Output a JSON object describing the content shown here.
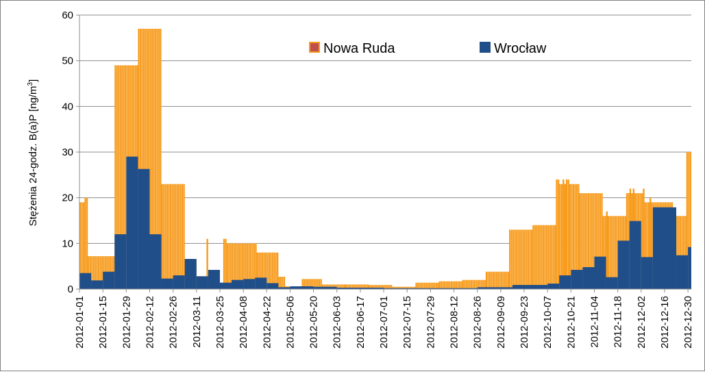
{
  "chart_data": {
    "type": "bar",
    "title": "",
    "xlabel": "",
    "ylabel_parts": [
      "Stężenia 24-godz. B(a)P [ng/m",
      "3",
      "]"
    ],
    "ylim": [
      0,
      60
    ],
    "yticks": [
      "0",
      "10",
      "20",
      "30",
      "40",
      "50",
      "60"
    ],
    "grid": "horizontal",
    "legend_placement": "top-center",
    "xticks": [
      "2012-01-01",
      "2012-01-15",
      "2012-01-29",
      "2012-02-12",
      "2012-02-26",
      "2012-03-11",
      "2012-03-25",
      "2012-04-08",
      "2012-04-22",
      "2012-05-06",
      "2012-05-20",
      "2012-06-03",
      "2012-06-17",
      "2012-07-01",
      "2012-07-15",
      "2012-07-29",
      "2012-08-12",
      "2012-08-26",
      "2012-09-09",
      "2012-09-23",
      "2012-10-07",
      "2012-10-21",
      "2012-11-04",
      "2012-11-18",
      "2012-12-02",
      "2012-12-16",
      "2012-12-30"
    ],
    "series": [
      {
        "name": "Nowa Ruda",
        "color": "#f79b1c",
        "values": [
          {
            "from": "2012-01-01",
            "to": "2012-01-03",
            "v": 19
          },
          {
            "from": "2012-01-04",
            "to": "2012-01-05",
            "v": 20
          },
          {
            "from": "2012-01-06",
            "to": "2012-01-21",
            "v": 7.2
          },
          {
            "from": "2012-01-22",
            "to": "2012-02-04",
            "v": 49
          },
          {
            "from": "2012-02-05",
            "to": "2012-02-18",
            "v": 57
          },
          {
            "from": "2012-02-19",
            "to": "2012-03-03",
            "v": 23
          },
          {
            "from": "2012-03-04",
            "to": "2012-03-10",
            "v": 6.5
          },
          {
            "from": "2012-03-11",
            "to": "2012-03-16",
            "v": 2.8
          },
          {
            "from": "2012-03-17",
            "to": "2012-03-17",
            "v": 11
          },
          {
            "from": "2012-03-18",
            "to": "2012-03-24",
            "v": 4.2
          },
          {
            "from": "2012-03-25",
            "to": "2012-03-26",
            "v": 1.3
          },
          {
            "from": "2012-03-27",
            "to": "2012-03-28",
            "v": 11
          },
          {
            "from": "2012-03-29",
            "to": "2012-04-15",
            "v": 10
          },
          {
            "from": "2012-04-16",
            "to": "2012-04-28",
            "v": 8
          },
          {
            "from": "2012-04-29",
            "to": "2012-05-02",
            "v": 2.7
          },
          {
            "from": "2012-05-03",
            "to": "2012-05-12",
            "v": 0.6
          },
          {
            "from": "2012-05-13",
            "to": "2012-05-24",
            "v": 2.2
          },
          {
            "from": "2012-05-25",
            "to": "2012-06-07",
            "v": 1
          },
          {
            "from": "2012-06-08",
            "to": "2012-06-21",
            "v": 1
          },
          {
            "from": "2012-06-22",
            "to": "2012-07-05",
            "v": 0.9
          },
          {
            "from": "2012-07-06",
            "to": "2012-07-19",
            "v": 0.5
          },
          {
            "from": "2012-07-20",
            "to": "2012-08-02",
            "v": 1.4
          },
          {
            "from": "2012-08-03",
            "to": "2012-08-16",
            "v": 1.7
          },
          {
            "from": "2012-08-17",
            "to": "2012-08-30",
            "v": 2
          },
          {
            "from": "2012-08-31",
            "to": "2012-09-13",
            "v": 3.8
          },
          {
            "from": "2012-09-14",
            "to": "2012-09-27",
            "v": 13
          },
          {
            "from": "2012-09-28",
            "to": "2012-10-11",
            "v": 14
          },
          {
            "from": "2012-10-12",
            "to": "2012-10-13",
            "v": 24
          },
          {
            "from": "2012-10-14",
            "to": "2012-10-15",
            "v": 23
          },
          {
            "from": "2012-10-16",
            "to": "2012-10-16",
            "v": 24
          },
          {
            "from": "2012-10-17",
            "to": "2012-10-17",
            "v": 23
          },
          {
            "from": "2012-10-18",
            "to": "2012-10-19",
            "v": 24
          },
          {
            "from": "2012-10-20",
            "to": "2012-10-25",
            "v": 23
          },
          {
            "from": "2012-10-26",
            "to": "2012-11-08",
            "v": 21
          },
          {
            "from": "2012-11-09",
            "to": "2012-11-10",
            "v": 16
          },
          {
            "from": "2012-11-11",
            "to": "2012-11-11",
            "v": 17
          },
          {
            "from": "2012-11-12",
            "to": "2012-11-22",
            "v": 16
          },
          {
            "from": "2012-11-23",
            "to": "2012-11-24",
            "v": 21
          },
          {
            "from": "2012-11-25",
            "to": "2012-11-25",
            "v": 22
          },
          {
            "from": "2012-11-26",
            "to": "2012-11-26",
            "v": 21
          },
          {
            "from": "2012-11-27",
            "to": "2012-11-27",
            "v": 22
          },
          {
            "from": "2012-11-28",
            "to": "2012-12-02",
            "v": 21
          },
          {
            "from": "2012-12-03",
            "to": "2012-12-03",
            "v": 22
          },
          {
            "from": "2012-12-04",
            "to": "2012-12-06",
            "v": 19
          },
          {
            "from": "2012-12-07",
            "to": "2012-12-07",
            "v": 20
          },
          {
            "from": "2012-12-08",
            "to": "2012-12-20",
            "v": 19
          },
          {
            "from": "2012-12-21",
            "to": "2012-12-28",
            "v": 16
          },
          {
            "from": "2012-12-29",
            "to": "2012-12-31",
            "v": 30
          }
        ]
      },
      {
        "name": "Wrocław",
        "color": "#1f4e89",
        "values": [
          {
            "from": "2012-01-01",
            "to": "2012-01-07",
            "v": 3.5
          },
          {
            "from": "2012-01-08",
            "to": "2012-01-14",
            "v": 1.9
          },
          {
            "from": "2012-01-15",
            "to": "2012-01-21",
            "v": 3.8
          },
          {
            "from": "2012-01-22",
            "to": "2012-01-28",
            "v": 12
          },
          {
            "from": "2012-01-29",
            "to": "2012-02-04",
            "v": 29
          },
          {
            "from": "2012-02-05",
            "to": "2012-02-11",
            "v": 26.3
          },
          {
            "from": "2012-02-12",
            "to": "2012-02-18",
            "v": 12
          },
          {
            "from": "2012-02-19",
            "to": "2012-02-25",
            "v": 2.3
          },
          {
            "from": "2012-02-26",
            "to": "2012-03-03",
            "v": 3
          },
          {
            "from": "2012-03-04",
            "to": "2012-03-10",
            "v": 6.6
          },
          {
            "from": "2012-03-11",
            "to": "2012-03-17",
            "v": 2.8
          },
          {
            "from": "2012-03-18",
            "to": "2012-03-24",
            "v": 4.2
          },
          {
            "from": "2012-03-25",
            "to": "2012-03-31",
            "v": 1.4
          },
          {
            "from": "2012-04-01",
            "to": "2012-04-07",
            "v": 2
          },
          {
            "from": "2012-04-08",
            "to": "2012-04-14",
            "v": 2.2
          },
          {
            "from": "2012-04-15",
            "to": "2012-04-21",
            "v": 2.5
          },
          {
            "from": "2012-04-22",
            "to": "2012-04-28",
            "v": 1.3
          },
          {
            "from": "2012-04-29",
            "to": "2012-05-05",
            "v": 0.4
          },
          {
            "from": "2012-05-06",
            "to": "2012-05-19",
            "v": 0.6
          },
          {
            "from": "2012-05-20",
            "to": "2012-06-02",
            "v": 0.5
          },
          {
            "from": "2012-06-03",
            "to": "2012-06-30",
            "v": 0.3
          },
          {
            "from": "2012-07-01",
            "to": "2012-08-25",
            "v": 0.2
          },
          {
            "from": "2012-08-26",
            "to": "2012-09-15",
            "v": 0.4
          },
          {
            "from": "2012-09-16",
            "to": "2012-10-06",
            "v": 0.9
          },
          {
            "from": "2012-10-07",
            "to": "2012-10-13",
            "v": 1.2
          },
          {
            "from": "2012-10-14",
            "to": "2012-10-20",
            "v": 3
          },
          {
            "from": "2012-10-21",
            "to": "2012-10-27",
            "v": 4.2
          },
          {
            "from": "2012-10-28",
            "to": "2012-11-03",
            "v": 4.8
          },
          {
            "from": "2012-11-04",
            "to": "2012-11-10",
            "v": 7.1
          },
          {
            "from": "2012-11-11",
            "to": "2012-11-17",
            "v": 2.6
          },
          {
            "from": "2012-11-18",
            "to": "2012-11-24",
            "v": 10.6
          },
          {
            "from": "2012-11-25",
            "to": "2012-12-01",
            "v": 14.9
          },
          {
            "from": "2012-12-02",
            "to": "2012-12-08",
            "v": 7
          },
          {
            "from": "2012-12-09",
            "to": "2012-12-22",
            "v": 17.9
          },
          {
            "from": "2012-12-23",
            "to": "2012-12-29",
            "v": 7.4
          },
          {
            "from": "2012-12-30",
            "to": "2012-12-31",
            "v": 9.2
          },
          {
            "from": "2012-12-31",
            "to": "2012-12-31",
            "v": 7.5
          }
        ]
      }
    ]
  }
}
